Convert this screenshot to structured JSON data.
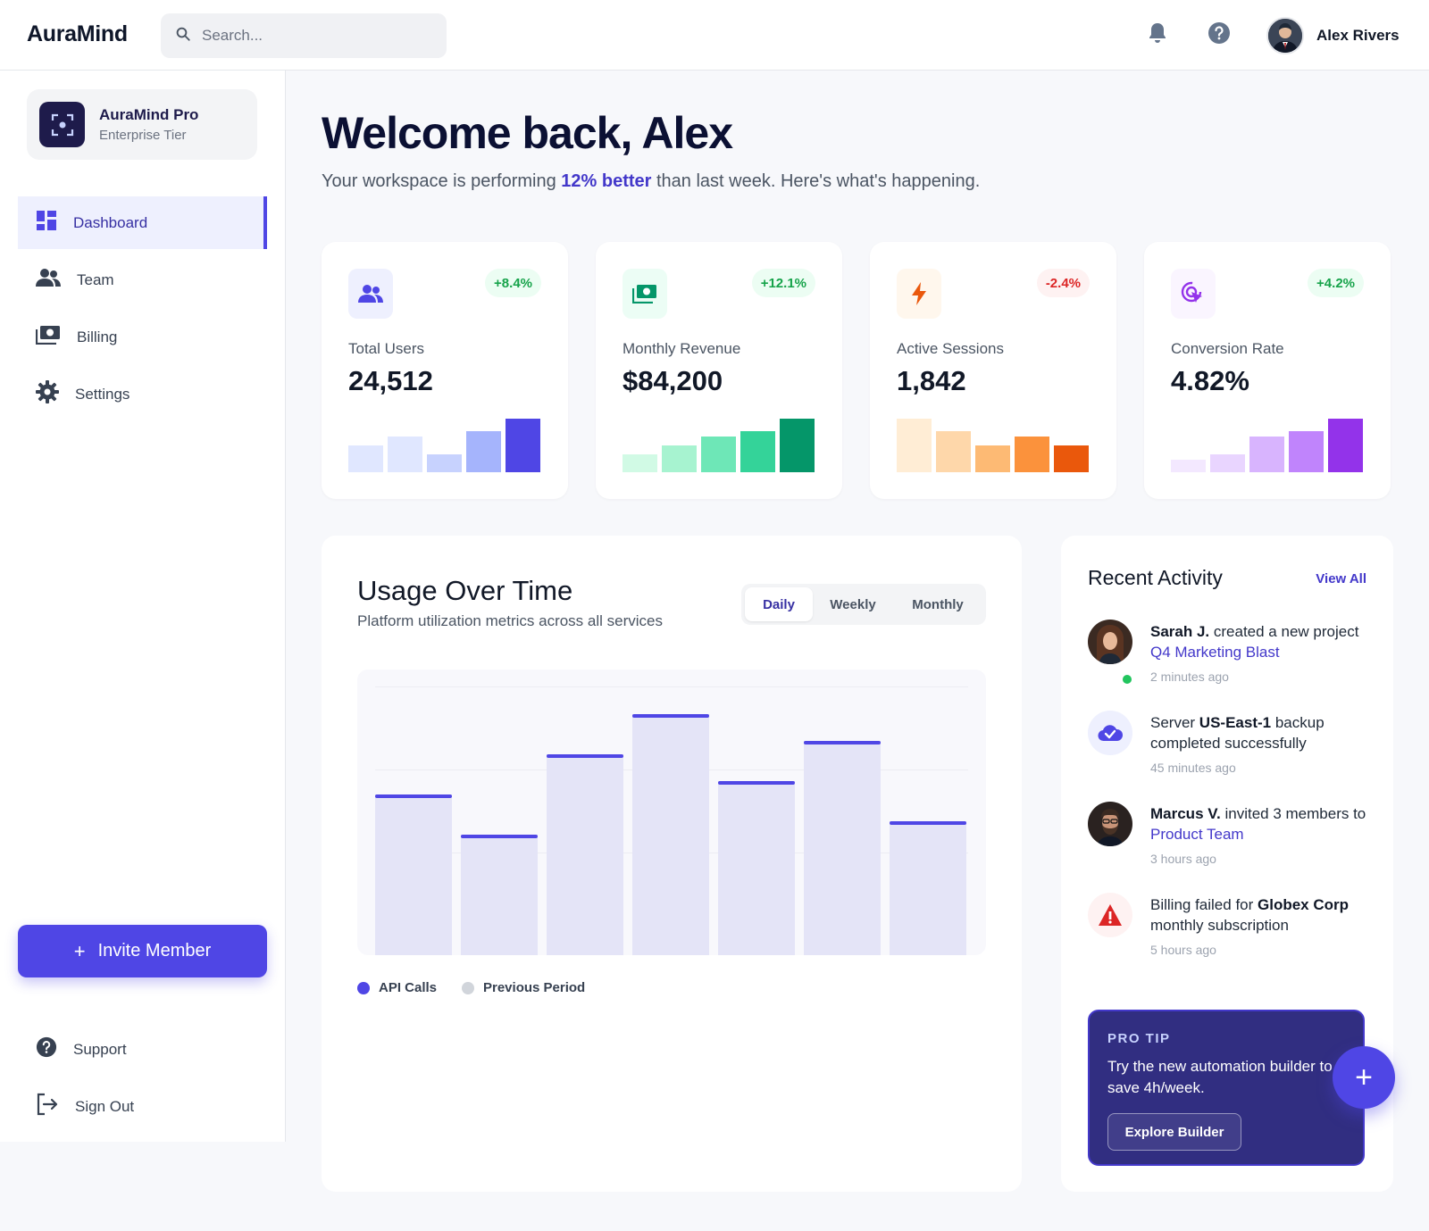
{
  "header": {
    "logo": "AuraMind",
    "search_placeholder": "Search...",
    "user_name": "Alex Rivers"
  },
  "sidebar": {
    "plan_name": "AuraMind Pro",
    "plan_tier": "Enterprise Tier",
    "nav": [
      {
        "label": "Dashboard",
        "icon": "dashboard-icon",
        "active": true
      },
      {
        "label": "Team",
        "icon": "team-icon"
      },
      {
        "label": "Billing",
        "icon": "billing-icon"
      },
      {
        "label": "Settings",
        "icon": "gear-icon"
      }
    ],
    "invite_label": "Invite Member",
    "bottom_nav": [
      {
        "label": "Support",
        "icon": "help-icon"
      },
      {
        "label": "Sign Out",
        "icon": "sign-out-icon"
      }
    ]
  },
  "main": {
    "welcome": "Welcome back, Alex",
    "subtitle_pre": "Your workspace is performing ",
    "subtitle_highlight": "12% better",
    "subtitle_post": " than last week. Here's what's happening."
  },
  "stats": [
    {
      "label": "Total Users",
      "value": "24,512",
      "change": "+8.4%",
      "trend": "pos",
      "accent": "#4f46e5",
      "icon_bg": "#eef0fe",
      "spark": [
        0.5,
        0.67,
        0.33,
        0.76,
        1.0
      ],
      "spark_colors": [
        "#e0e7ff",
        "#e0e7ff",
        "#c7d2fe",
        "#a5b4fc",
        "#4f46e5"
      ]
    },
    {
      "label": "Monthly Revenue",
      "value": "$84,200",
      "change": "+12.1%",
      "trend": "pos",
      "accent": "#059669",
      "icon_bg": "#ecfdf5",
      "spark": [
        0.33,
        0.5,
        0.67,
        0.76,
        1.0
      ],
      "spark_colors": [
        "#d1fae5",
        "#a7f3d0",
        "#6ee7b7",
        "#34d399",
        "#059669"
      ]
    },
    {
      "label": "Active Sessions",
      "value": "1,842",
      "change": "-2.4%",
      "trend": "neg",
      "accent": "#ea580c",
      "icon_bg": "#fff7ed",
      "spark": [
        1.0,
        0.76,
        0.5,
        0.67,
        0.5
      ],
      "spark_colors": [
        "#ffedd5",
        "#fed7aa",
        "#fdba74",
        "#fb923c",
        "#ea580c"
      ]
    },
    {
      "label": "Conversion Rate",
      "value": "4.82%",
      "change": "+4.2%",
      "trend": "pos",
      "accent": "#9333ea",
      "icon_bg": "#faf5ff",
      "spark": [
        0.24,
        0.33,
        0.67,
        0.76,
        1.0
      ],
      "spark_colors": [
        "#f3e8ff",
        "#e9d5ff",
        "#d8b4fe",
        "#c084fc",
        "#9333ea"
      ]
    }
  ],
  "usage": {
    "title": "Usage Over Time",
    "subtitle": "Platform utilization metrics across all services",
    "tabs": [
      "Daily",
      "Weekly",
      "Monthly"
    ],
    "active_tab": "Daily",
    "legend": [
      {
        "label": "API Calls",
        "color": "#4f46e5"
      },
      {
        "label": "Previous Period",
        "color": "#d1d5db"
      }
    ]
  },
  "chart_data": {
    "type": "bar",
    "values": [
      60,
      45,
      75,
      90,
      65,
      80,
      50
    ],
    "ylim": [
      0,
      100
    ],
    "series": [
      {
        "name": "API Calls",
        "values": [
          60,
          45,
          75,
          90,
          65,
          80,
          50
        ]
      }
    ]
  },
  "activity": {
    "title": "Recent Activity",
    "view_all": "View All",
    "items": [
      {
        "actor": "Sarah J.",
        "mid": " created a new project ",
        "link": "Q4 Marketing Blast",
        "time": "2 minutes ago"
      },
      {
        "pre": "Server ",
        "bold": "US-East-1",
        "post": " backup completed successfully",
        "time": "45 minutes ago"
      },
      {
        "actor": "Marcus V.",
        "mid": " invited 3 members to ",
        "link": "Product Team",
        "time": "3 hours ago"
      },
      {
        "pre": "Billing failed for ",
        "bold": "Globex Corp",
        "post": " monthly subscription",
        "time": "5 hours ago"
      }
    ],
    "tip_label": "PRO TIP",
    "tip_text": "Try the new automation builder to save 4h/week.",
    "tip_button": "Explore Builder"
  }
}
